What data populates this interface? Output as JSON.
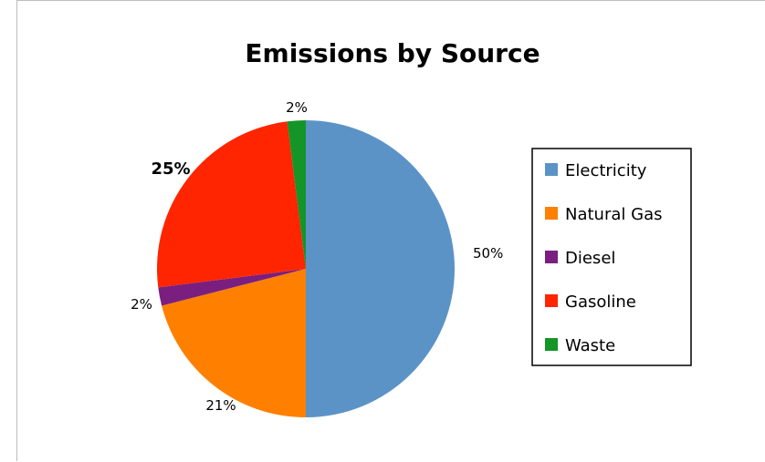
{
  "chart_data": {
    "type": "pie",
    "title": "Emissions by Source",
    "categories": [
      "Electricity",
      "Natural Gas",
      "Diesel",
      "Gasoline",
      "Waste"
    ],
    "values": [
      50,
      21,
      2,
      25,
      2
    ],
    "data_labels": [
      "50%",
      "21%",
      "2%",
      "25%",
      "2%"
    ],
    "colors": [
      "#5b93c6",
      "#ff7f00",
      "#7a1f7f",
      "#ff2500",
      "#159428"
    ],
    "bold_labels": [
      "25%"
    ],
    "start_angle": "12 o'clock",
    "direction": "clockwise",
    "legend": {
      "placement": "right",
      "entries": [
        "Electricity",
        "Natural Gas",
        "Diesel",
        "Gasoline",
        "Waste"
      ]
    }
  }
}
